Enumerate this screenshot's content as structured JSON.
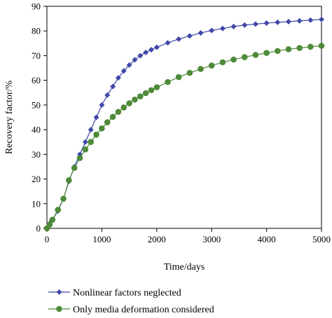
{
  "chart_data": {
    "type": "scatter",
    "xlabel": "Time/days",
    "ylabel": "Recovery factor/%",
    "xlim": [
      0,
      5000
    ],
    "ylim": [
      0,
      90
    ],
    "xticks": [
      "0",
      "1000",
      "2000",
      "3000",
      "4000",
      "5000"
    ],
    "yticks": [
      "0",
      "10",
      "20",
      "30",
      "40",
      "50",
      "60",
      "70",
      "80",
      "90"
    ],
    "grid": false,
    "legend_position": "bottom",
    "series": [
      {
        "name": "Nonlinear factors neglected",
        "color": "#3f48a8",
        "marker": "diamond",
        "x": [
          0,
          50,
          100,
          200,
          300,
          400,
          500,
          600,
          700,
          800,
          900,
          1000,
          1100,
          1200,
          1300,
          1400,
          1500,
          1600,
          1700,
          1800,
          1900,
          2000,
          2200,
          2400,
          2600,
          2800,
          3000,
          3200,
          3400,
          3600,
          3800,
          4000,
          4200,
          4400,
          4600,
          4800,
          5000
        ],
        "values": [
          0,
          2,
          3.5,
          7,
          12,
          19,
          25,
          30,
          35,
          40,
          45,
          50,
          54,
          57.5,
          61,
          63.8,
          66.2,
          68.3,
          70,
          71.3,
          72.4,
          73.4,
          75.2,
          76.7,
          78,
          79.2,
          80.2,
          81,
          81.8,
          82.4,
          82.8,
          83.2,
          83.5,
          83.8,
          84.1,
          84.4,
          84.7
        ]
      },
      {
        "name": "Only media deformation considered",
        "color": "#4e8a38",
        "marker": "circle",
        "x": [
          0,
          50,
          100,
          200,
          300,
          400,
          500,
          600,
          700,
          800,
          900,
          1000,
          1100,
          1200,
          1300,
          1400,
          1500,
          1600,
          1700,
          1800,
          1900,
          2000,
          2200,
          2400,
          2600,
          2800,
          3000,
          3200,
          3400,
          3600,
          3800,
          4000,
          4200,
          4400,
          4600,
          4800,
          5000
        ],
        "values": [
          0,
          1.5,
          3.5,
          7.5,
          12,
          19.5,
          24.5,
          28.5,
          32,
          35,
          38,
          40.5,
          43,
          45.2,
          47.2,
          49,
          50.7,
          52.2,
          53.5,
          54.8,
          56,
          57.2,
          59.3,
          61.3,
          63,
          64.6,
          66,
          67.3,
          68.4,
          69.4,
          70.3,
          71.1,
          71.9,
          72.6,
          73.1,
          73.6,
          74
        ]
      }
    ]
  }
}
